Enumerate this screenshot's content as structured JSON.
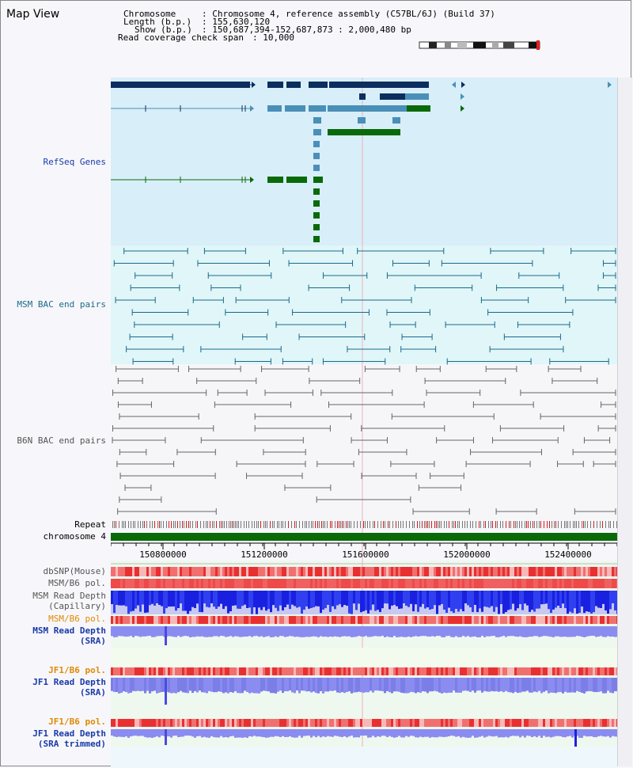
{
  "title": "Map View",
  "info": {
    "chromosome_key": "Chromosome",
    "chromosome_val": ": Chromosome 4, reference assembly (C57BL/6J) (Build 37)",
    "length_key": "Length (b.p.)",
    "length_val": ": 155,630,120",
    "show_key": "Show (b.p.)",
    "show_val": ": 150,687,394-152,687,873 : 2,000,480 bp",
    "coverage_key": "Read coverage check span",
    "coverage_val": ": 10,000"
  },
  "tracks": {
    "refseq": "RefSeq Genes",
    "msm_bac": "MSM BAC end pairs",
    "b6n_bac": "B6N BAC end pairs",
    "repeat": "Repeat",
    "chromosome": "chromosome 4",
    "dbsnp": "dbSNP(Mouse)",
    "msm_b6_pol_1": "MSM/B6 pol.",
    "msm_read_depth_cap_1": "MSM Read Depth",
    "msm_read_depth_cap_2": "(Capillary)",
    "msm_b6_pol_2": "MSM/B6 pol.",
    "msm_read_depth_sra_1": "MSM Read Depth",
    "msm_read_depth_sra_2": "(SRA)",
    "jf1_b6_pol_1": "JF1/B6 pol.",
    "jf1_read_depth_1": "JF1 Read Depth",
    "jf1_read_depth_2": "(SRA)",
    "jf1_b6_pol_2": "JF1/B6 pol.",
    "jf1_read_depth_trim_1": "JF1 Read Depth",
    "jf1_read_depth_trim_2": "(SRA trimmed)"
  },
  "ruler": {
    "ticks": [
      "150800000",
      "151200000",
      "151600000",
      "152000000",
      "152400000"
    ]
  },
  "colors": {
    "refseq_bg": "#d8eef8",
    "bac_bg": "#e0f6f8",
    "gene_dark": "#0b2e5e",
    "gene_mid": "#4a8fb8",
    "gene_green": "#0a6a0a",
    "msm_line": "#1a6a8a",
    "b6n_line": "#666666",
    "chromosome_green": "#0a6a0a",
    "label_blue": "#1a3aa8",
    "label_teal": "#1a6a8a",
    "label_orange": "#e08a00",
    "snp_red": "#ee5050"
  }
}
